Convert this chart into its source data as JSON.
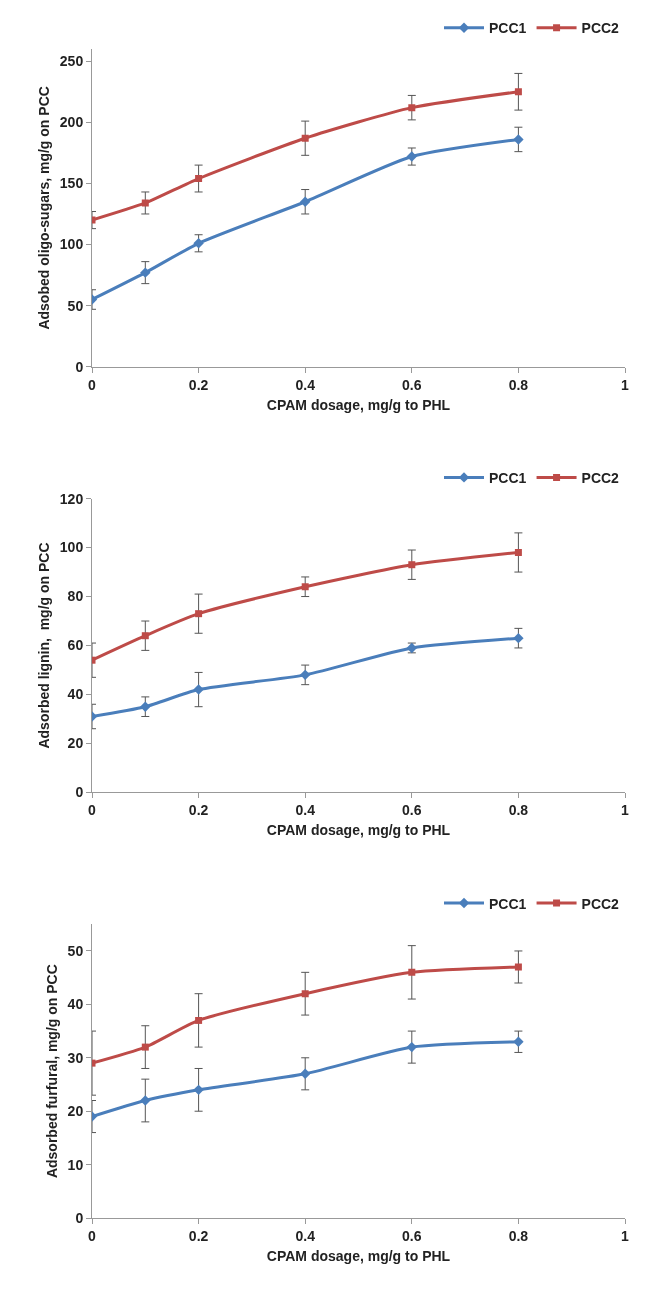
{
  "chart_data": [
    {
      "type": "line",
      "xlabel": "CPAM dosage, mg/g to PHL",
      "ylabel": "Adsobed oligo-sugars, mg/g on PCC",
      "x": [
        0,
        0.1,
        0.2,
        0.4,
        0.6,
        0.8
      ],
      "xlim": [
        0,
        1
      ],
      "xticks": [
        0,
        0.2,
        0.4,
        0.6,
        0.8,
        1
      ],
      "ylim": [
        0,
        260
      ],
      "yticks": [
        0,
        50,
        100,
        150,
        200,
        250
      ],
      "legend": "top right",
      "line_style": "solid",
      "series": [
        {
          "name": "PCC1",
          "color": "#4a7ebb",
          "marker": "diamond",
          "values": [
            55,
            77,
            101,
            135,
            172,
            186
          ],
          "errors": [
            8,
            9,
            7,
            10,
            7,
            10
          ]
        },
        {
          "name": "PCC2",
          "color": "#be4b48",
          "marker": "square",
          "values": [
            120,
            134,
            154,
            187,
            212,
            225
          ],
          "errors": [
            7,
            9,
            11,
            14,
            10,
            15
          ]
        }
      ]
    },
    {
      "type": "line",
      "xlabel": "CPAM dosage, mg/g to PHL",
      "ylabel": "Adsorbed lignin,  mg/g on PCC",
      "x": [
        0,
        0.1,
        0.2,
        0.4,
        0.6,
        0.8
      ],
      "xlim": [
        0,
        1
      ],
      "xticks": [
        0,
        0.2,
        0.4,
        0.6,
        0.8,
        1
      ],
      "ylim": [
        0,
        120
      ],
      "yticks": [
        0,
        20,
        40,
        60,
        80,
        100,
        120
      ],
      "legend": "top right",
      "line_style": "solid",
      "series": [
        {
          "name": "PCC1",
          "color": "#4a7ebb",
          "marker": "diamond",
          "values": [
            31,
            35,
            42,
            48,
            59,
            63
          ],
          "errors": [
            5,
            4,
            7,
            4,
            2,
            4
          ]
        },
        {
          "name": "PCC2",
          "color": "#be4b48",
          "marker": "square",
          "values": [
            54,
            64,
            73,
            84,
            93,
            98
          ],
          "errors": [
            7,
            6,
            8,
            4,
            6,
            8
          ]
        }
      ]
    },
    {
      "type": "line",
      "xlabel": "CPAM dosage, mg/g to PHL",
      "ylabel": "Adsorbed furfural, mg/g on PCC",
      "x": [
        0,
        0.1,
        0.2,
        0.4,
        0.6,
        0.8
      ],
      "xlim": [
        0,
        1
      ],
      "xticks": [
        0,
        0.2,
        0.4,
        0.6,
        0.8,
        1
      ],
      "ylim": [
        0,
        55
      ],
      "yticks": [
        0,
        10,
        20,
        30,
        40,
        50
      ],
      "legend": "top right",
      "line_style": "solid",
      "series": [
        {
          "name": "PCC1",
          "color": "#4a7ebb",
          "marker": "diamond",
          "values": [
            19,
            22,
            24,
            27,
            32,
            33
          ],
          "errors": [
            3,
            4,
            4,
            3,
            3,
            2
          ]
        },
        {
          "name": "PCC2",
          "color": "#be4b48",
          "marker": "square",
          "values": [
            29,
            32,
            37,
            42,
            46,
            47
          ],
          "errors": [
            6,
            4,
            5,
            4,
            5,
            3
          ]
        }
      ]
    }
  ]
}
